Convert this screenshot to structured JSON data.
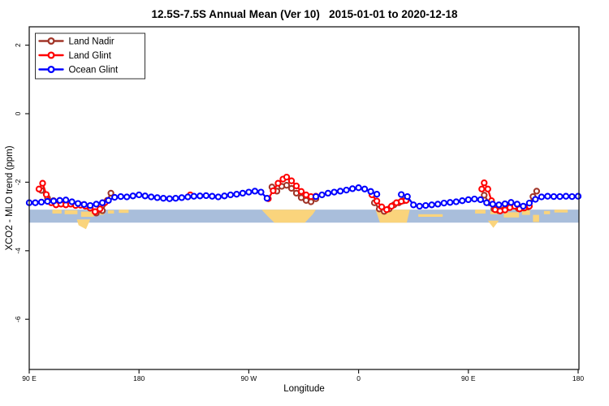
{
  "chart_data": {
    "type": "line",
    "title": "12.5S-7.5S Annual Mean (Ver 10)   2015-01-01 to 2020-12-18",
    "xlabel": "Longitude",
    "ylabel": "XCO2 - MLO trend (ppm)",
    "grid": false,
    "legend_position": "top-left",
    "x_axis": {
      "range": [
        90,
        540
      ],
      "ticks": [
        {
          "value": 90,
          "label": "90 E"
        },
        {
          "value": 180,
          "label": "180"
        },
        {
          "value": 270,
          "label": "90 W"
        },
        {
          "value": 360,
          "label": "0"
        },
        {
          "value": 450,
          "label": "90 E"
        },
        {
          "value": 540,
          "label": "180"
        }
      ]
    },
    "y_axis": {
      "range": [
        -7.5,
        2.5
      ],
      "ticks": [
        {
          "value": 2,
          "label": "2"
        },
        {
          "value": 0,
          "label": "0"
        },
        {
          "value": -2,
          "label": "-2"
        },
        {
          "value": -4,
          "label": "-4"
        },
        {
          "value": -6,
          "label": "-6"
        }
      ]
    },
    "legend": [
      {
        "name": "Land Nadir",
        "color": "#a13528"
      },
      {
        "name": "Land Glint",
        "color": "#ff0000"
      },
      {
        "name": "Ocean Glint",
        "color": "#0000ff"
      }
    ],
    "map_strip": {
      "ocean_color": "#a9bedb",
      "land_color": "#fad47c",
      "y_top": -2.8,
      "y_bottom": -3.18,
      "land_polys": [
        {
          "name": "south-america",
          "pts": [
            [
              280.5,
              0
            ],
            [
              325,
              0
            ],
            [
              322.5,
              0.35
            ],
            [
              316,
              1
            ],
            [
              291,
              1
            ],
            [
              285.5,
              0.5
            ]
          ]
        },
        {
          "name": "africa",
          "pts": [
            [
              374,
              0
            ],
            [
              402,
              0
            ],
            [
              399.5,
              1
            ],
            [
              377.5,
              1
            ]
          ]
        },
        {
          "name": "timor-hang",
          "pts": [
            [
              129,
              0.75
            ],
            [
              140,
              0.75
            ],
            [
              136.5,
              1.5
            ],
            [
              130.5,
              1.2
            ]
          ]
        },
        {
          "name": "island-hang",
          "pts": [
            [
              466,
              0.85
            ],
            [
              475,
              0.85
            ],
            [
              470.5,
              1.4
            ]
          ]
        }
      ],
      "land_rects": [
        [
          109,
          116.5,
          0,
          0.3
        ],
        [
          119,
          129.5,
          0.05,
          0.35
        ],
        [
          132.5,
          143,
          0.15,
          0.55
        ],
        [
          145.5,
          151,
          0.1,
          0.4
        ],
        [
          154.5,
          159.5,
          0.05,
          0.3
        ],
        [
          163.5,
          171.5,
          0,
          0.25
        ],
        [
          409,
          429,
          0.35,
          0.55
        ],
        [
          455.5,
          464,
          0,
          0.3
        ],
        [
          468,
          476.5,
          0.05,
          0.35
        ],
        [
          479,
          491.5,
          0.2,
          0.6
        ],
        [
          494,
          500.5,
          0.05,
          0.4
        ],
        [
          503,
          508,
          0.4,
          0.95
        ],
        [
          512,
          517,
          0.1,
          0.35
        ],
        [
          520.5,
          531.5,
          0,
          0.22
        ]
      ]
    },
    "series": [
      {
        "name": "Land Nadir",
        "color": "#a13528",
        "segments": [
          [
            [
              100,
              -2.24
            ],
            [
              105,
              -2.46
            ],
            [
              110,
              -2.54
            ],
            [
              115,
              -2.58
            ],
            [
              120,
              -2.56
            ],
            [
              125,
              -2.6
            ],
            [
              130,
              -2.63
            ],
            [
              135,
              -2.67
            ],
            [
              140,
              -2.76
            ],
            [
              145,
              -2.9
            ],
            [
              150,
              -2.83
            ],
            [
              154,
              -2.53
            ],
            [
              157,
              -2.32
            ]
          ],
          [
            [
              289,
              -2.14
            ],
            [
              293,
              -2.26
            ],
            [
              297,
              -2.12
            ],
            [
              301,
              -2.09
            ],
            [
              305,
              -2.18
            ],
            [
              309,
              -2.32
            ],
            [
              313,
              -2.45
            ],
            [
              317,
              -2.53
            ],
            [
              321,
              -2.57
            ],
            [
              325,
              -2.48
            ]
          ],
          [
            [
              373,
              -2.6
            ],
            [
              377,
              -2.78
            ],
            [
              381,
              -2.85
            ],
            [
              385,
              -2.78
            ],
            [
              389,
              -2.66
            ],
            [
              393,
              -2.6
            ],
            [
              397,
              -2.54
            ]
          ],
          [
            [
              463,
              -2.38
            ],
            [
              467,
              -2.6
            ],
            [
              471,
              -2.78
            ],
            [
              475,
              -2.83
            ],
            [
              479,
              -2.8
            ],
            [
              483,
              -2.74
            ],
            [
              487,
              -2.7
            ],
            [
              491,
              -2.77
            ],
            [
              495,
              -2.75
            ],
            [
              499,
              -2.72
            ],
            [
              503,
              -2.42
            ],
            [
              506,
              -2.26
            ]
          ]
        ]
      },
      {
        "name": "Land Glint",
        "color": "#ff0000",
        "segments": [
          [
            [
              98,
              -2.2
            ],
            [
              101,
              -2.03
            ],
            [
              104,
              -2.36
            ],
            [
              108,
              -2.6
            ],
            [
              112,
              -2.66
            ],
            [
              116,
              -2.64
            ],
            [
              120,
              -2.66
            ],
            [
              124,
              -2.64
            ],
            [
              128,
              -2.68
            ],
            [
              132,
              -2.67
            ],
            [
              136,
              -2.7
            ],
            [
              140,
              -2.75
            ],
            [
              144,
              -2.86
            ],
            [
              148,
              -2.78
            ],
            [
              152,
              -2.6
            ]
          ],
          [
            [
              222,
              -2.37
            ]
          ],
          [
            [
              286,
              -2.48
            ],
            [
              290,
              -2.25
            ],
            [
              294,
              -2.03
            ],
            [
              298,
              -1.91
            ],
            [
              301,
              -1.85
            ],
            [
              305,
              -1.96
            ],
            [
              309,
              -2.11
            ],
            [
              313,
              -2.27
            ],
            [
              317,
              -2.37
            ],
            [
              321,
              -2.42
            ],
            [
              325,
              -2.41
            ]
          ],
          [
            [
              371,
              -2.37
            ],
            [
              375,
              -2.55
            ],
            [
              379,
              -2.72
            ],
            [
              383,
              -2.8
            ],
            [
              387,
              -2.7
            ],
            [
              391,
              -2.6
            ],
            [
              395,
              -2.56
            ],
            [
              399,
              -2.53
            ]
          ],
          [
            [
              461,
              -2.2
            ],
            [
              463,
              -2.02
            ],
            [
              466,
              -2.2
            ],
            [
              469,
              -2.54
            ],
            [
              472,
              -2.8
            ],
            [
              476,
              -2.84
            ],
            [
              480,
              -2.81
            ],
            [
              484,
              -2.74
            ],
            [
              488,
              -2.7
            ],
            [
              492,
              -2.78
            ],
            [
              496,
              -2.75
            ],
            [
              500,
              -2.7
            ]
          ]
        ]
      },
      {
        "name": "Ocean Glint",
        "color": "#0000ff",
        "segments": [
          [
            [
              90,
              -2.6
            ],
            [
              95,
              -2.6
            ],
            [
              100,
              -2.58
            ],
            [
              105,
              -2.56
            ],
            [
              110,
              -2.55
            ],
            [
              115,
              -2.53
            ],
            [
              120,
              -2.52
            ],
            [
              125,
              -2.57
            ],
            [
              130,
              -2.62
            ],
            [
              135,
              -2.65
            ],
            [
              140,
              -2.68
            ],
            [
              145,
              -2.64
            ],
            [
              150,
              -2.6
            ],
            [
              155,
              -2.53
            ],
            [
              160,
              -2.44
            ],
            [
              165,
              -2.42
            ],
            [
              170,
              -2.43
            ],
            [
              175,
              -2.4
            ],
            [
              180,
              -2.37
            ],
            [
              185,
              -2.4
            ],
            [
              190,
              -2.43
            ],
            [
              195,
              -2.45
            ],
            [
              200,
              -2.47
            ],
            [
              205,
              -2.48
            ],
            [
              210,
              -2.47
            ],
            [
              215,
              -2.45
            ],
            [
              220,
              -2.43
            ],
            [
              225,
              -2.41
            ],
            [
              230,
              -2.4
            ],
            [
              235,
              -2.39
            ],
            [
              240,
              -2.41
            ],
            [
              245,
              -2.43
            ],
            [
              250,
              -2.4
            ],
            [
              255,
              -2.37
            ],
            [
              260,
              -2.35
            ],
            [
              265,
              -2.32
            ],
            [
              270,
              -2.29
            ],
            [
              275,
              -2.26
            ],
            [
              280,
              -2.29
            ],
            [
              285,
              -2.47
            ]
          ],
          [
            [
              325,
              -2.42
            ],
            [
              330,
              -2.37
            ],
            [
              335,
              -2.32
            ],
            [
              340,
              -2.29
            ],
            [
              345,
              -2.26
            ],
            [
              350,
              -2.23
            ],
            [
              355,
              -2.19
            ],
            [
              360,
              -2.16
            ],
            [
              365,
              -2.2
            ],
            [
              370,
              -2.27
            ],
            [
              375,
              -2.35
            ]
          ],
          [
            [
              395,
              -2.36
            ],
            [
              400,
              -2.42
            ],
            [
              405,
              -2.66
            ],
            [
              410,
              -2.7
            ],
            [
              415,
              -2.68
            ],
            [
              420,
              -2.66
            ],
            [
              425,
              -2.64
            ],
            [
              430,
              -2.61
            ],
            [
              435,
              -2.59
            ],
            [
              440,
              -2.57
            ],
            [
              445,
              -2.54
            ],
            [
              450,
              -2.51
            ],
            [
              455,
              -2.49
            ],
            [
              460,
              -2.51
            ],
            [
              465,
              -2.6
            ],
            [
              470,
              -2.64
            ],
            [
              475,
              -2.66
            ],
            [
              480,
              -2.63
            ],
            [
              485,
              -2.59
            ],
            [
              490,
              -2.64
            ],
            [
              495,
              -2.7
            ],
            [
              500,
              -2.61
            ],
            [
              505,
              -2.5
            ],
            [
              510,
              -2.43
            ],
            [
              515,
              -2.41
            ],
            [
              520,
              -2.42
            ],
            [
              525,
              -2.42
            ],
            [
              530,
              -2.41
            ],
            [
              535,
              -2.42
            ],
            [
              540,
              -2.41
            ]
          ]
        ]
      }
    ]
  }
}
